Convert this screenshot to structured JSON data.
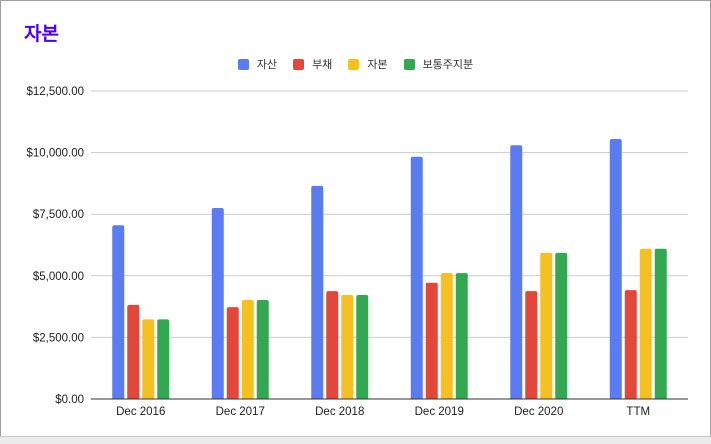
{
  "chart_data": {
    "type": "bar",
    "title": "자본",
    "categories": [
      "Dec 2016",
      "Dec 2017",
      "Dec 2018",
      "Dec 2019",
      "Dec 2020",
      "TTM"
    ],
    "series": [
      {
        "name": "자산",
        "color": "#5b7cf0",
        "values": [
          7050,
          7750,
          8650,
          9830,
          10300,
          10550
        ]
      },
      {
        "name": "부채",
        "color": "#e3473a",
        "values": [
          3820,
          3730,
          4380,
          4720,
          4380,
          4420
        ]
      },
      {
        "name": "자본",
        "color": "#f4c022",
        "values": [
          3230,
          4020,
          4220,
          5110,
          5930,
          6100
        ]
      },
      {
        "name": "보통주지분",
        "color": "#33a853",
        "values": [
          3230,
          4020,
          4220,
          5110,
          5930,
          6100
        ]
      }
    ],
    "ylim": [
      0,
      12500
    ],
    "yticks": [
      "$0.00",
      "$2,500.00",
      "$5,000.00",
      "$7,500.00",
      "$10,000.00",
      "$12,500.00"
    ],
    "ytick_values": [
      0,
      2500,
      5000,
      7500,
      10000,
      12500
    ],
    "grid": true,
    "legend_position": "top-center",
    "xlabel": "",
    "ylabel": ""
  }
}
